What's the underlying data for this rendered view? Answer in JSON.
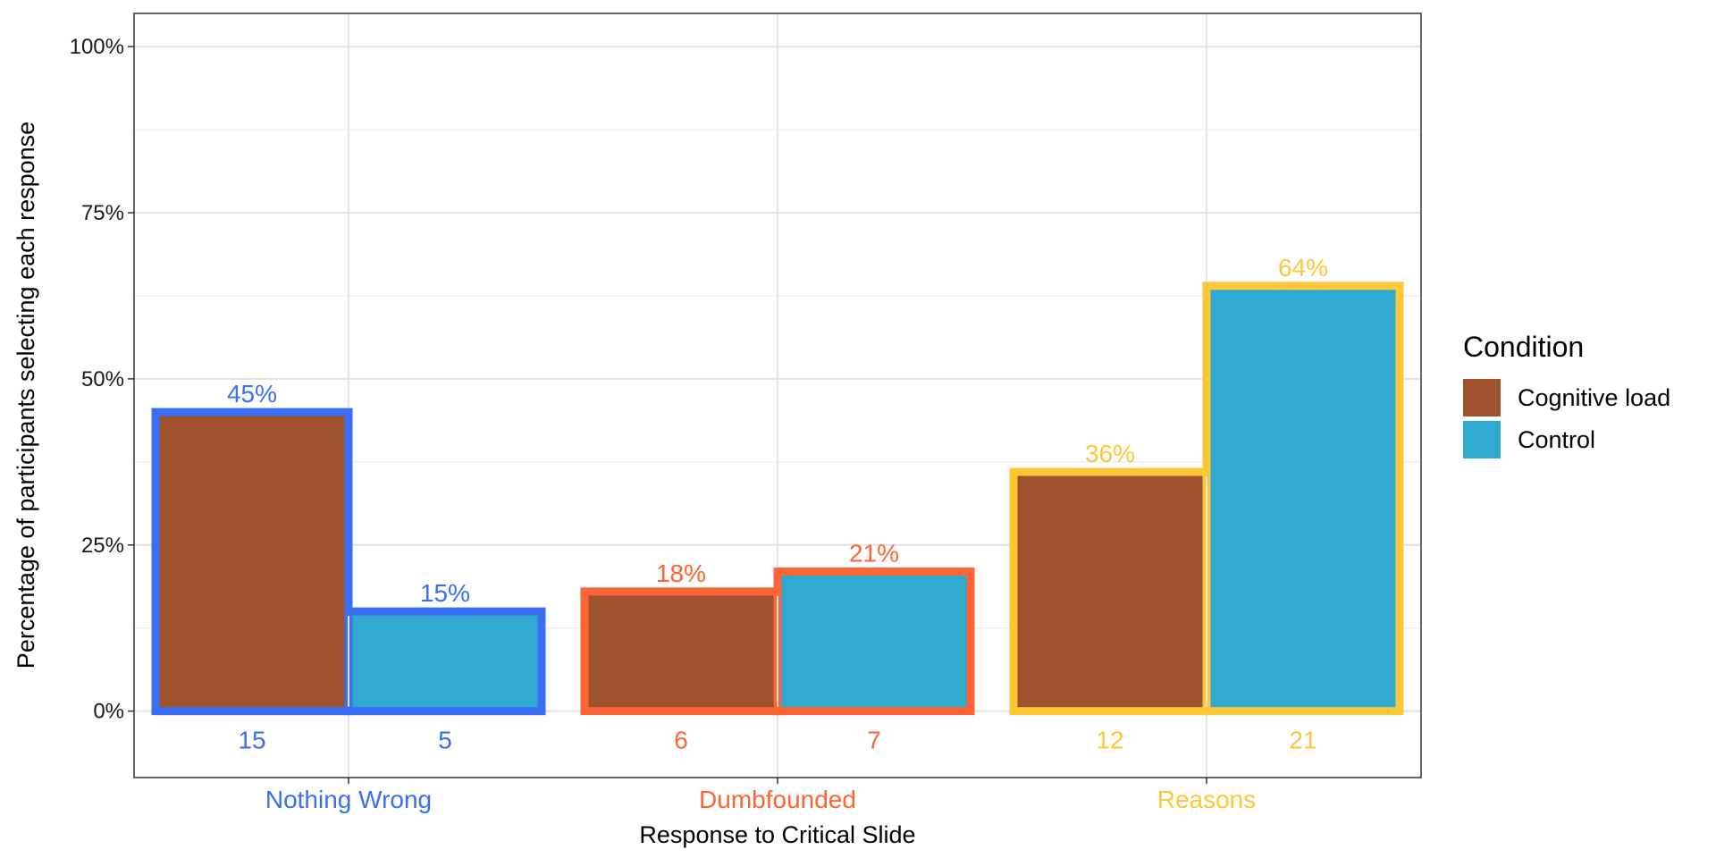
{
  "chart_data": {
    "type": "bar",
    "xlabel": "Response to Critical Slide",
    "ylabel": "Percentage of participants selecting each response",
    "ylim": [
      -0.1,
      1.05
    ],
    "yticks": [
      0,
      0.25,
      0.5,
      0.75,
      1.0
    ],
    "ytick_labels": [
      "0%",
      "25%",
      "50%",
      "75%",
      "100%"
    ],
    "grid": true,
    "legend": {
      "title": "Condition",
      "position": "right",
      "entries": [
        {
          "name": "Cognitive load",
          "color": "#A0522D"
        },
        {
          "name": "Control",
          "color": "#30A9D0"
        }
      ]
    },
    "categories": [
      "Nothing Wrong",
      "Dumbfounded",
      "Reasons"
    ],
    "category_colors": [
      "#3A6EF5",
      "#FF6434",
      "#FDC738"
    ],
    "series": [
      {
        "name": "Cognitive load",
        "color": "#A0522D",
        "values": [
          0.45,
          0.18,
          0.36
        ],
        "labels": [
          "45%",
          "18%",
          "36%"
        ],
        "counts": [
          "15",
          "6",
          "12"
        ]
      },
      {
        "name": "Control",
        "color": "#30A9D0",
        "values": [
          0.15,
          0.21,
          0.64
        ],
        "labels": [
          "15%",
          "21%",
          "64%"
        ],
        "counts": [
          "5",
          "7",
          "21"
        ]
      }
    ]
  }
}
